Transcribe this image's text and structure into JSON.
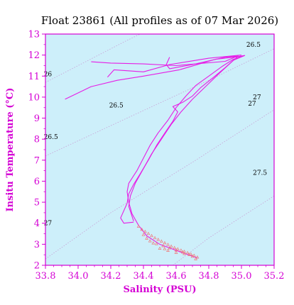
{
  "chart_data": {
    "type": "line",
    "title": "Float 23861  (All profiles as of 07 Mar 2026)",
    "xlabel": "Salinity (PSU)",
    "ylabel": "Insitu Temperature (°C)",
    "xlim": [
      33.8,
      35.2
    ],
    "ylim": [
      2,
      13
    ],
    "xticks": [
      "33.8",
      "34.0",
      "34.2",
      "34.4",
      "34.6",
      "34.8",
      "35.0",
      "35.2"
    ],
    "yticks": [
      "2",
      "3",
      "4",
      "5",
      "6",
      "7",
      "8",
      "9",
      "10",
      "11",
      "12",
      "13"
    ],
    "grid": false,
    "colors": {
      "plot_background": "#cdeffa",
      "axis": "#d400d4",
      "profile_line": "#e61ee6",
      "deep_points": "#f07878",
      "density_contours": "#c8a0d6"
    },
    "density_contour_labels": [
      {
        "label": "26",
        "x": 33.79,
        "y": 11.0
      },
      {
        "label": "26.5",
        "x": 34.19,
        "y": 9.5
      },
      {
        "label": "26.5",
        "x": 33.79,
        "y": 8.0
      },
      {
        "label": "26.5",
        "x": 35.03,
        "y": 12.4
      },
      {
        "label": "27",
        "x": 35.04,
        "y": 9.6
      },
      {
        "label": "27",
        "x": 35.07,
        "y": 9.9
      },
      {
        "label": "27.5",
        "x": 35.07,
        "y": 6.3
      },
      {
        "label": "27",
        "x": 33.79,
        "y": 3.9
      }
    ],
    "density_contours": [
      {
        "sigma": 26.0,
        "points": [
          [
            33.8,
            10.7
          ],
          [
            34.3,
            12.7
          ],
          [
            34.38,
            13.0
          ]
        ]
      },
      {
        "sigma": 26.5,
        "points": [
          [
            33.8,
            7.2
          ],
          [
            34.3,
            9.0
          ],
          [
            34.8,
            10.8
          ],
          [
            35.2,
            12.3
          ]
        ]
      },
      {
        "sigma": 27.0,
        "points": [
          [
            33.8,
            2.3
          ],
          [
            34.2,
            4.5
          ],
          [
            34.7,
            6.9
          ],
          [
            35.2,
            9.4
          ]
        ]
      },
      {
        "sigma": 27.5,
        "points": [
          [
            34.58,
            2.0
          ],
          [
            34.8,
            3.3
          ],
          [
            35.2,
            5.3
          ]
        ]
      }
    ],
    "series": [
      {
        "type": "line",
        "points": [
          [
            34.73,
            2.35
          ],
          [
            34.62,
            2.65
          ],
          [
            34.5,
            3.0
          ],
          [
            34.42,
            3.4
          ],
          [
            34.37,
            3.9
          ],
          [
            34.33,
            4.45
          ],
          [
            34.31,
            5.0
          ],
          [
            34.3,
            5.5
          ],
          [
            34.31,
            5.9
          ],
          [
            34.36,
            6.5
          ],
          [
            34.4,
            7.1
          ],
          [
            34.44,
            7.7
          ],
          [
            34.49,
            8.3
          ],
          [
            34.55,
            8.9
          ],
          [
            34.6,
            9.5
          ],
          [
            34.66,
            10.05
          ],
          [
            34.72,
            10.55
          ],
          [
            34.8,
            11.0
          ],
          [
            34.88,
            11.45
          ],
          [
            34.95,
            11.8
          ],
          [
            35.01,
            11.95
          ],
          [
            34.84,
            11.8
          ],
          [
            34.62,
            11.3
          ],
          [
            34.4,
            11.0
          ],
          [
            34.24,
            10.8
          ],
          [
            34.08,
            10.5
          ],
          [
            33.92,
            9.9
          ]
        ]
      },
      {
        "type": "line",
        "points": [
          [
            34.34,
            4.05
          ],
          [
            34.28,
            4.0
          ],
          [
            34.26,
            4.25
          ],
          [
            34.3,
            4.95
          ],
          [
            34.31,
            5.4
          ],
          [
            34.34,
            5.85
          ],
          [
            34.38,
            6.35
          ],
          [
            34.43,
            7.0
          ],
          [
            34.48,
            7.7
          ],
          [
            34.54,
            8.4
          ],
          [
            34.58,
            8.85
          ],
          [
            34.61,
            9.3
          ],
          [
            34.58,
            9.55
          ],
          [
            34.64,
            9.75
          ],
          [
            34.7,
            10.05
          ],
          [
            34.75,
            10.45
          ],
          [
            34.83,
            10.95
          ],
          [
            34.9,
            11.4
          ],
          [
            34.95,
            11.75
          ],
          [
            35.02,
            11.98
          ],
          [
            34.96,
            11.9
          ],
          [
            34.9,
            11.7
          ],
          [
            34.6,
            11.5
          ],
          [
            34.4,
            11.58
          ],
          [
            34.2,
            11.62
          ],
          [
            34.08,
            11.68
          ]
        ]
      },
      {
        "type": "line",
        "points": [
          [
            34.34,
            4.1
          ],
          [
            34.31,
            4.8
          ],
          [
            34.32,
            5.3
          ],
          [
            34.35,
            5.9
          ],
          [
            34.4,
            6.6
          ],
          [
            34.45,
            7.3
          ],
          [
            34.51,
            8.0
          ],
          [
            34.57,
            8.7
          ],
          [
            34.63,
            9.3
          ],
          [
            34.7,
            9.9
          ],
          [
            34.78,
            10.5
          ],
          [
            34.86,
            11.1
          ],
          [
            34.93,
            11.6
          ],
          [
            34.98,
            11.95
          ],
          [
            34.9,
            11.9
          ],
          [
            34.7,
            11.55
          ],
          [
            34.56,
            11.35
          ],
          [
            34.54,
            11.55
          ],
          [
            34.56,
            11.9
          ]
        ]
      },
      {
        "type": "line",
        "points": [
          [
            34.18,
            10.95
          ],
          [
            34.22,
            11.3
          ],
          [
            34.4,
            11.2
          ],
          [
            34.56,
            11.55
          ],
          [
            34.8,
            11.85
          ],
          [
            35.0,
            12.0
          ]
        ]
      }
    ],
    "scatter_points": [
      [
        34.37,
        3.85
      ],
      [
        34.39,
        3.7
      ],
      [
        34.41,
        3.6
      ],
      [
        34.43,
        3.5
      ],
      [
        34.45,
        3.4
      ],
      [
        34.47,
        3.3
      ],
      [
        34.49,
        3.22
      ],
      [
        34.51,
        3.14
      ],
      [
        34.53,
        3.06
      ],
      [
        34.55,
        2.98
      ],
      [
        34.57,
        2.9
      ],
      [
        34.59,
        2.83
      ],
      [
        34.61,
        2.77
      ],
      [
        34.63,
        2.71
      ],
      [
        34.65,
        2.65
      ],
      [
        34.67,
        2.59
      ],
      [
        34.69,
        2.53
      ],
      [
        34.71,
        2.46
      ],
      [
        34.73,
        2.38
      ],
      [
        34.72,
        2.3
      ],
      [
        34.68,
        2.5
      ],
      [
        34.64,
        2.62
      ],
      [
        34.6,
        2.72
      ],
      [
        34.56,
        2.82
      ],
      [
        34.52,
        2.92
      ],
      [
        34.48,
        3.02
      ],
      [
        34.44,
        3.15
      ],
      [
        34.42,
        3.28
      ],
      [
        34.4,
        3.45
      ],
      [
        34.5,
        2.8
      ],
      [
        34.55,
        2.7
      ],
      [
        34.6,
        2.6
      ],
      [
        34.65,
        2.55
      ],
      [
        34.7,
        2.42
      ],
      [
        34.46,
        3.05
      ],
      [
        34.53,
        2.78
      ]
    ]
  }
}
